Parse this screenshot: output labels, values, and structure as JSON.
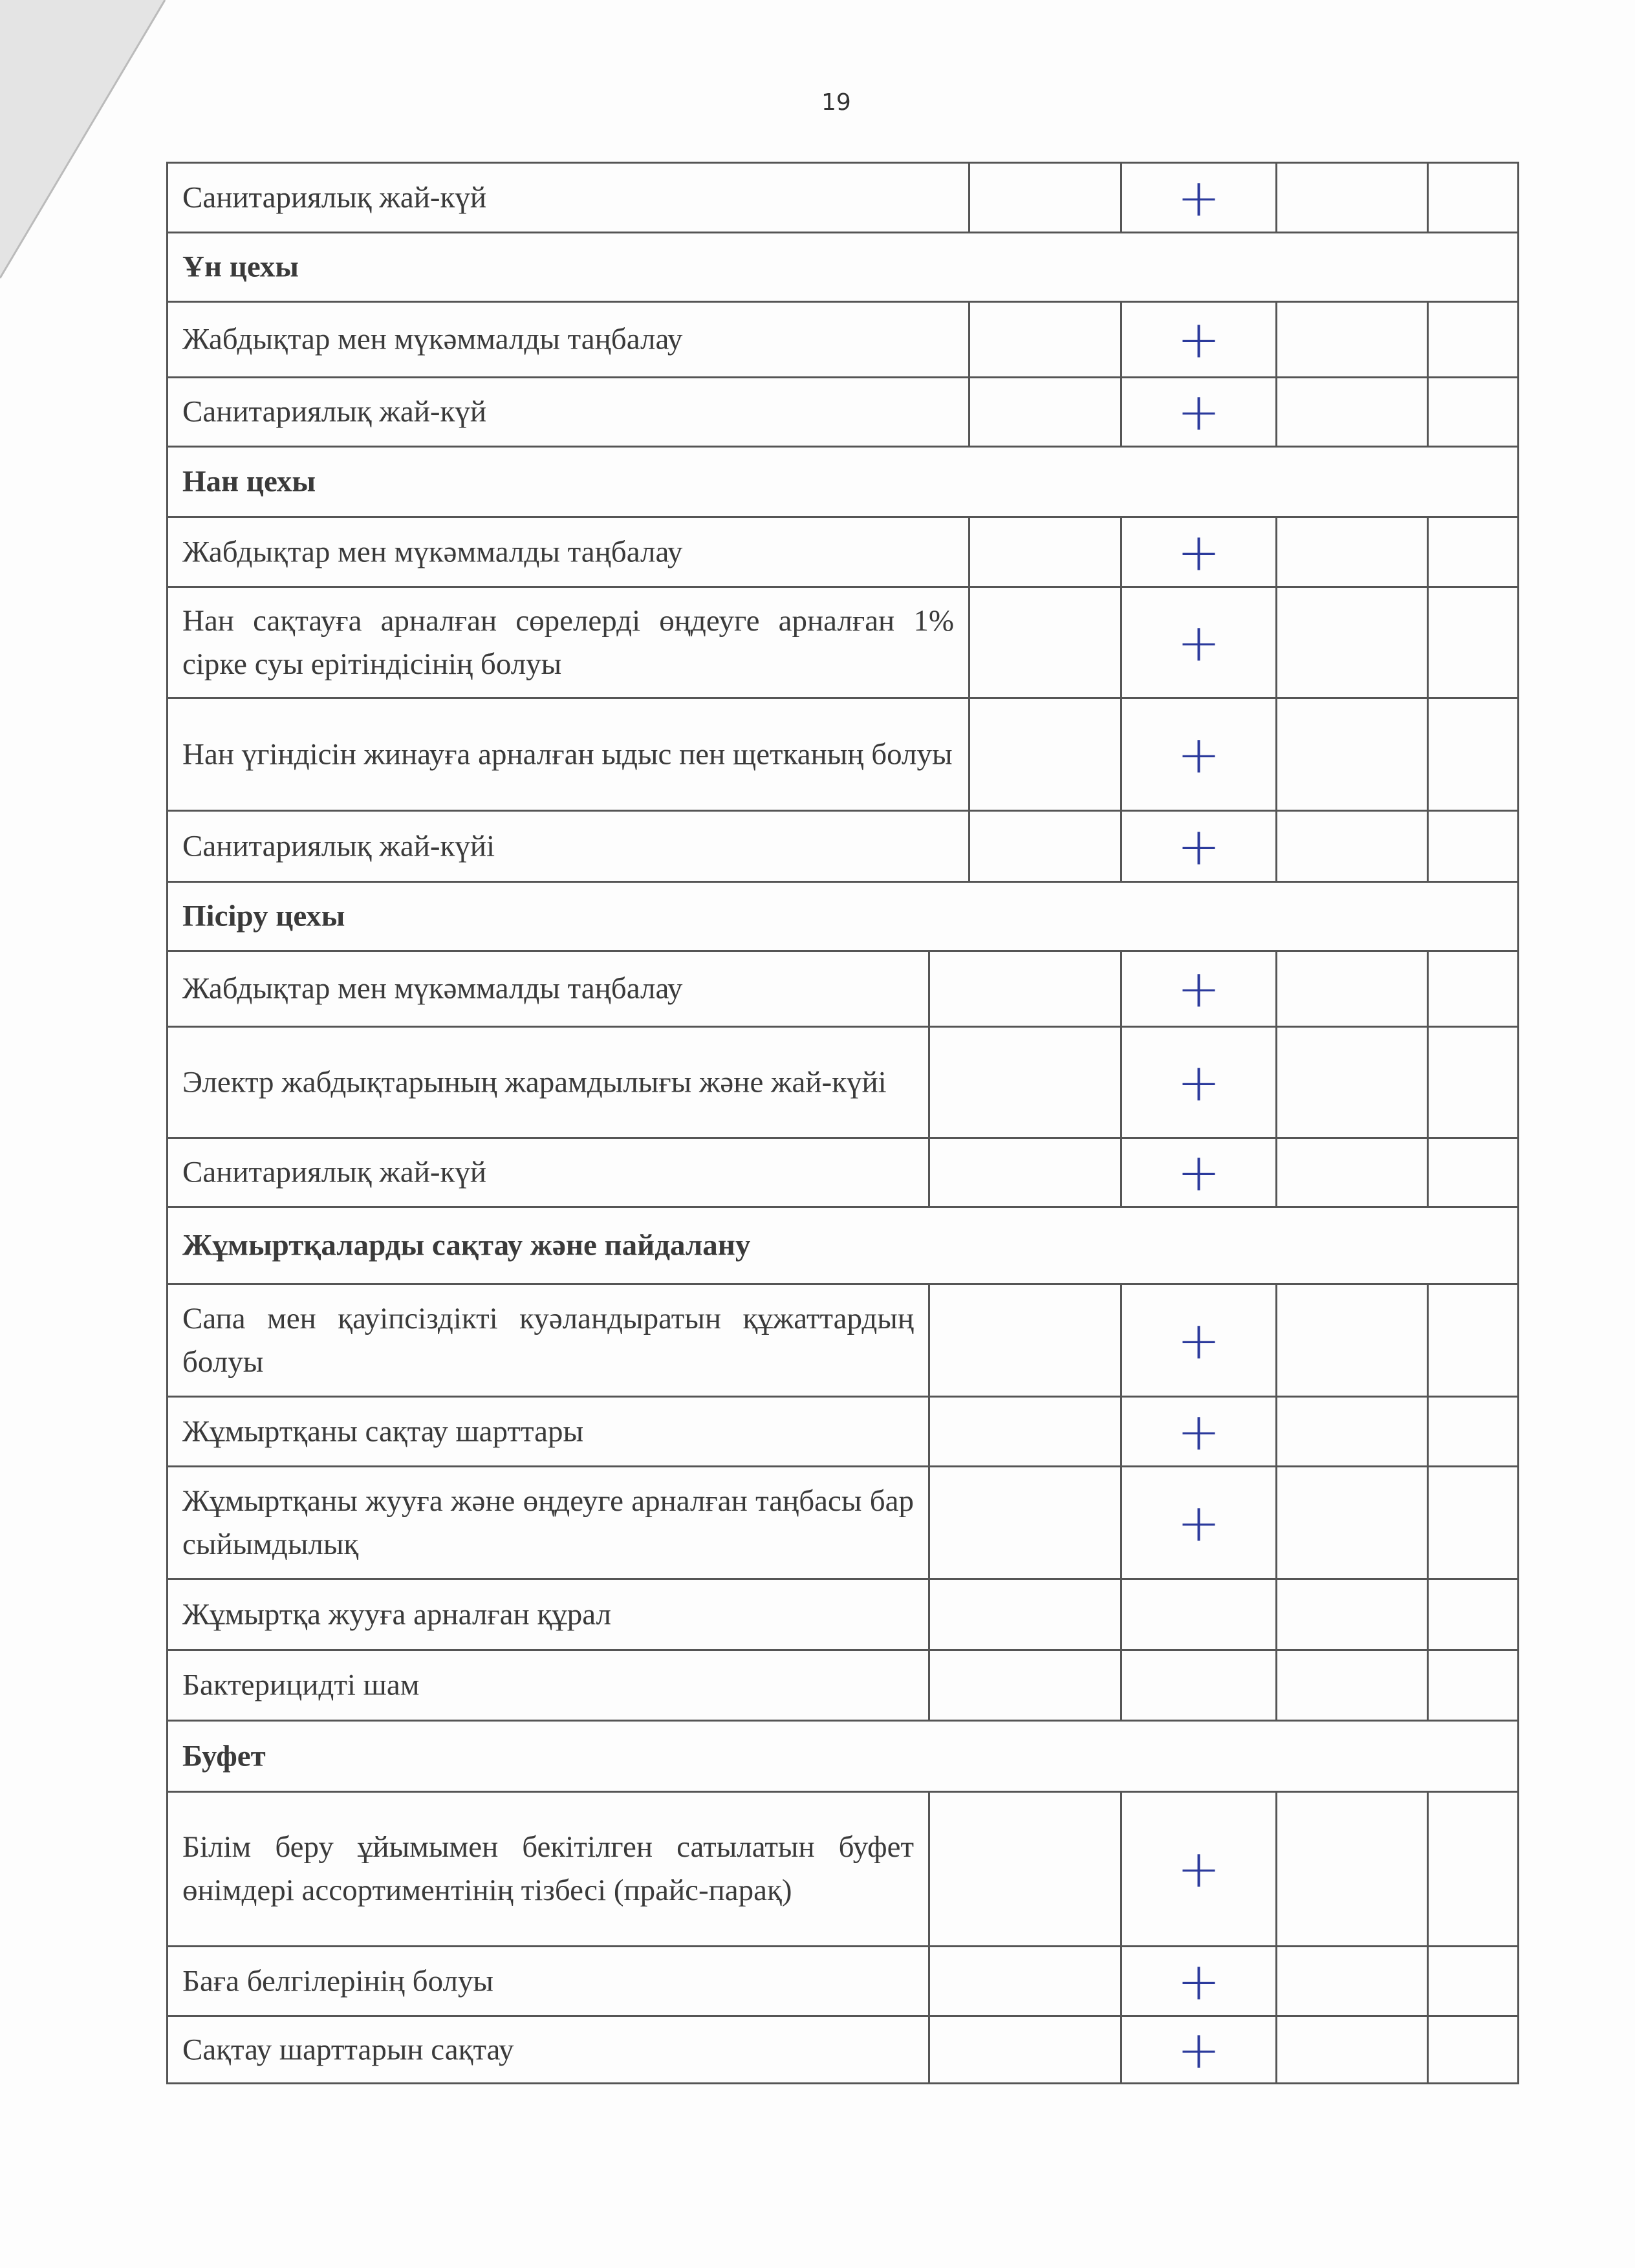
{
  "page_number": "19",
  "mark_color": "#2b3a9c",
  "rows": [
    {
      "type": "item",
      "text": "Санитариялық жай-күй",
      "marks": [
        "",
        "+",
        "",
        ""
      ]
    },
    {
      "type": "section",
      "text": "Ұн цехы"
    },
    {
      "type": "item",
      "text": "Жабдықтар мен мүкәммалды таңбалау",
      "marks": [
        "",
        "+",
        "",
        ""
      ]
    },
    {
      "type": "item",
      "text": "Санитариялық жай-күй",
      "marks": [
        "",
        "+",
        "",
        ""
      ]
    },
    {
      "type": "section",
      "text": "Нан цехы"
    },
    {
      "type": "item",
      "text": "Жабдықтар мен мүкәммалды таңбалау",
      "marks": [
        "",
        "+",
        "",
        ""
      ]
    },
    {
      "type": "item",
      "text": "Нан сақтауға арналған сөрелерді өңдеуге арналған 1% сірке суы ерітіндісінің болуы",
      "marks": [
        "",
        "+",
        "",
        ""
      ]
    },
    {
      "type": "item",
      "text": "Нан үгіндісін жинауға арналған ыдыс пен щетканың болуы",
      "marks": [
        "",
        "+",
        "",
        ""
      ]
    },
    {
      "type": "item",
      "text": "Санитариялық жай-күйі",
      "marks": [
        "",
        "+",
        "",
        ""
      ]
    },
    {
      "type": "section",
      "text": "Пісіру цехы"
    },
    {
      "type": "item",
      "text": "Жабдықтар мен мүкәммалды таңбалау",
      "marks": [
        "",
        "+",
        "",
        ""
      ]
    },
    {
      "type": "item",
      "text": "Электр жабдықтарының жарамдылығы және жай-күйі",
      "marks": [
        "",
        "+",
        "",
        ""
      ]
    },
    {
      "type": "item",
      "text": "Санитариялық жай-күй",
      "marks": [
        "",
        "+",
        "",
        ""
      ]
    },
    {
      "type": "section",
      "text": "Жұмыртқаларды сақтау және пайдалану"
    },
    {
      "type": "item",
      "text": "Сапа мен қауіпсіздікті куәландыратын құжаттардың болуы",
      "marks": [
        "",
        "+",
        "",
        ""
      ]
    },
    {
      "type": "item",
      "text": "Жұмыртқаны сақтау шарттары",
      "marks": [
        "",
        "+",
        "",
        ""
      ]
    },
    {
      "type": "item",
      "text": "Жұмыртқаны жууға және өңдеуге арналған таңбасы бар сыйымдылық",
      "marks": [
        "",
        "+",
        "",
        ""
      ]
    },
    {
      "type": "item",
      "text": "Жұмыртқа жууға арналған құрал",
      "marks": [
        "",
        "",
        "",
        ""
      ]
    },
    {
      "type": "item",
      "text": "Бактерицидті шам",
      "marks": [
        "",
        "",
        "",
        ""
      ]
    },
    {
      "type": "section",
      "text": "Буфет"
    },
    {
      "type": "item",
      "text": "Білім беру ұйымымен бекітілген сатылатын буфет өнімдері ассортиментінің тізбесі (прайс-парақ)",
      "marks": [
        "",
        "+",
        "",
        ""
      ]
    },
    {
      "type": "item",
      "text": "Баға белгілерінің болуы",
      "marks": [
        "",
        "+",
        "",
        ""
      ]
    },
    {
      "type": "item",
      "text": "Сақтау шарттарын сақтау",
      "marks": [
        "",
        "+",
        "",
        ""
      ]
    }
  ]
}
